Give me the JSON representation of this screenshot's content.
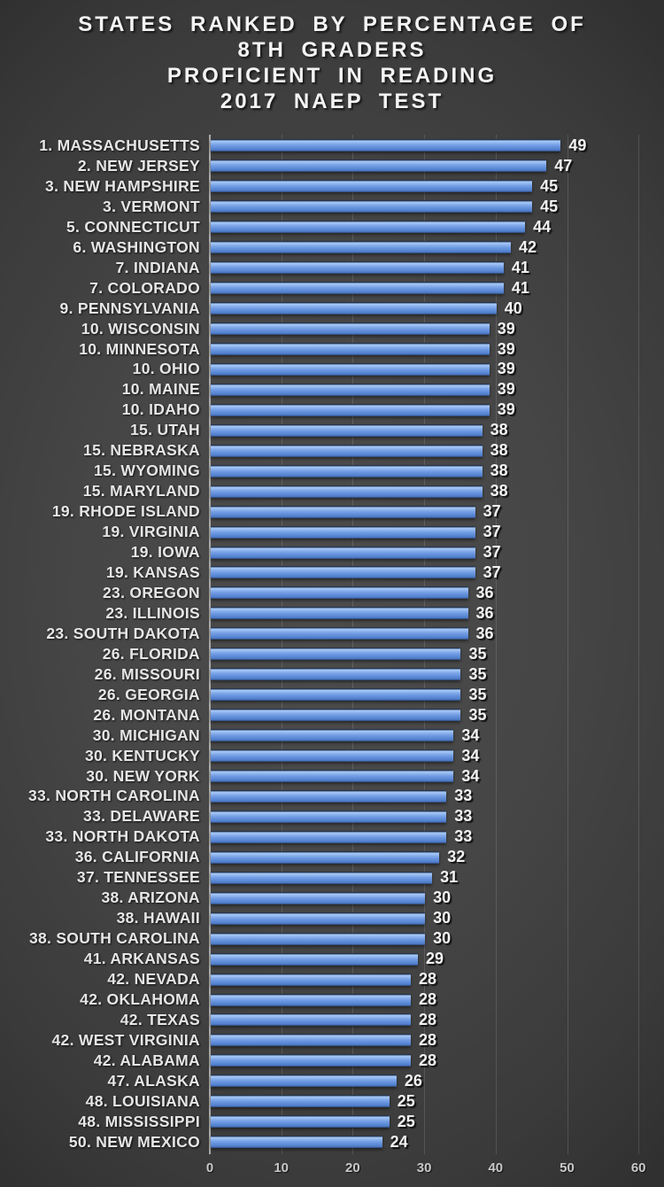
{
  "chart_data": {
    "type": "bar",
    "orientation": "horizontal",
    "title_lines": [
      "STATES RANKED BY PERCENTAGE OF",
      "8TH GRADERS",
      "PROFICIENT IN READING",
      "2017 NAEP TEST"
    ],
    "xlabel": "",
    "ylabel": "",
    "xlim": [
      0,
      60
    ],
    "x_ticks": [
      0,
      10,
      20,
      30,
      40,
      50,
      60
    ],
    "grid": true,
    "legend": "none",
    "bar_color": "#6a96e0",
    "bar_highlight_color": "#a7c9f5",
    "bar_shadow_color": "#24395c",
    "background_color": "#3f3f3f",
    "text_color": "#f2f2f2",
    "items": [
      {
        "label": "1. MASSACHUSETTS",
        "value": 49
      },
      {
        "label": "2. NEW JERSEY",
        "value": 47
      },
      {
        "label": "3. NEW HAMPSHIRE",
        "value": 45
      },
      {
        "label": "3. VERMONT",
        "value": 45
      },
      {
        "label": "5. CONNECTICUT",
        "value": 44
      },
      {
        "label": "6. WASHINGTON",
        "value": 42
      },
      {
        "label": "7. INDIANA",
        "value": 41
      },
      {
        "label": "7. COLORADO",
        "value": 41
      },
      {
        "label": "9. PENNSYLVANIA",
        "value": 40
      },
      {
        "label": "10. WISCONSIN",
        "value": 39
      },
      {
        "label": "10. MINNESOTA",
        "value": 39
      },
      {
        "label": "10. OHIO",
        "value": 39
      },
      {
        "label": "10. MAINE",
        "value": 39
      },
      {
        "label": "10. IDAHO",
        "value": 39
      },
      {
        "label": "15. UTAH",
        "value": 38
      },
      {
        "label": "15. NEBRASKA",
        "value": 38
      },
      {
        "label": "15. WYOMING",
        "value": 38
      },
      {
        "label": "15. MARYLAND",
        "value": 38
      },
      {
        "label": "19. RHODE ISLAND",
        "value": 37
      },
      {
        "label": "19. VIRGINIA",
        "value": 37
      },
      {
        "label": "19. IOWA",
        "value": 37
      },
      {
        "label": "19. KANSAS",
        "value": 37
      },
      {
        "label": "23. OREGON",
        "value": 36
      },
      {
        "label": "23. ILLINOIS",
        "value": 36
      },
      {
        "label": "23. SOUTH DAKOTA",
        "value": 36
      },
      {
        "label": "26. FLORIDA",
        "value": 35
      },
      {
        "label": "26. MISSOURI",
        "value": 35
      },
      {
        "label": "26. GEORGIA",
        "value": 35
      },
      {
        "label": "26. MONTANA",
        "value": 35
      },
      {
        "label": "30. MICHIGAN",
        "value": 34
      },
      {
        "label": "30. KENTUCKY",
        "value": 34
      },
      {
        "label": "30. NEW YORK",
        "value": 34
      },
      {
        "label": "33. NORTH CAROLINA",
        "value": 33
      },
      {
        "label": "33. DELAWARE",
        "value": 33
      },
      {
        "label": "33. NORTH DAKOTA",
        "value": 33
      },
      {
        "label": "36. CALIFORNIA",
        "value": 32
      },
      {
        "label": "37. TENNESSEE",
        "value": 31
      },
      {
        "label": "38. ARIZONA",
        "value": 30
      },
      {
        "label": "38. HAWAII",
        "value": 30
      },
      {
        "label": "38. SOUTH CAROLINA",
        "value": 30
      },
      {
        "label": "41. ARKANSAS",
        "value": 29
      },
      {
        "label": "42. NEVADA",
        "value": 28
      },
      {
        "label": "42. OKLAHOMA",
        "value": 28
      },
      {
        "label": "42. TEXAS",
        "value": 28
      },
      {
        "label": "42. WEST VIRGINIA",
        "value": 28
      },
      {
        "label": "42. ALABAMA",
        "value": 28
      },
      {
        "label": "47. ALASKA",
        "value": 26
      },
      {
        "label": "48. LOUISIANA",
        "value": 25
      },
      {
        "label": "48. MISSISSIPPI",
        "value": 25
      },
      {
        "label": "50. NEW MEXICO",
        "value": 24
      }
    ]
  }
}
